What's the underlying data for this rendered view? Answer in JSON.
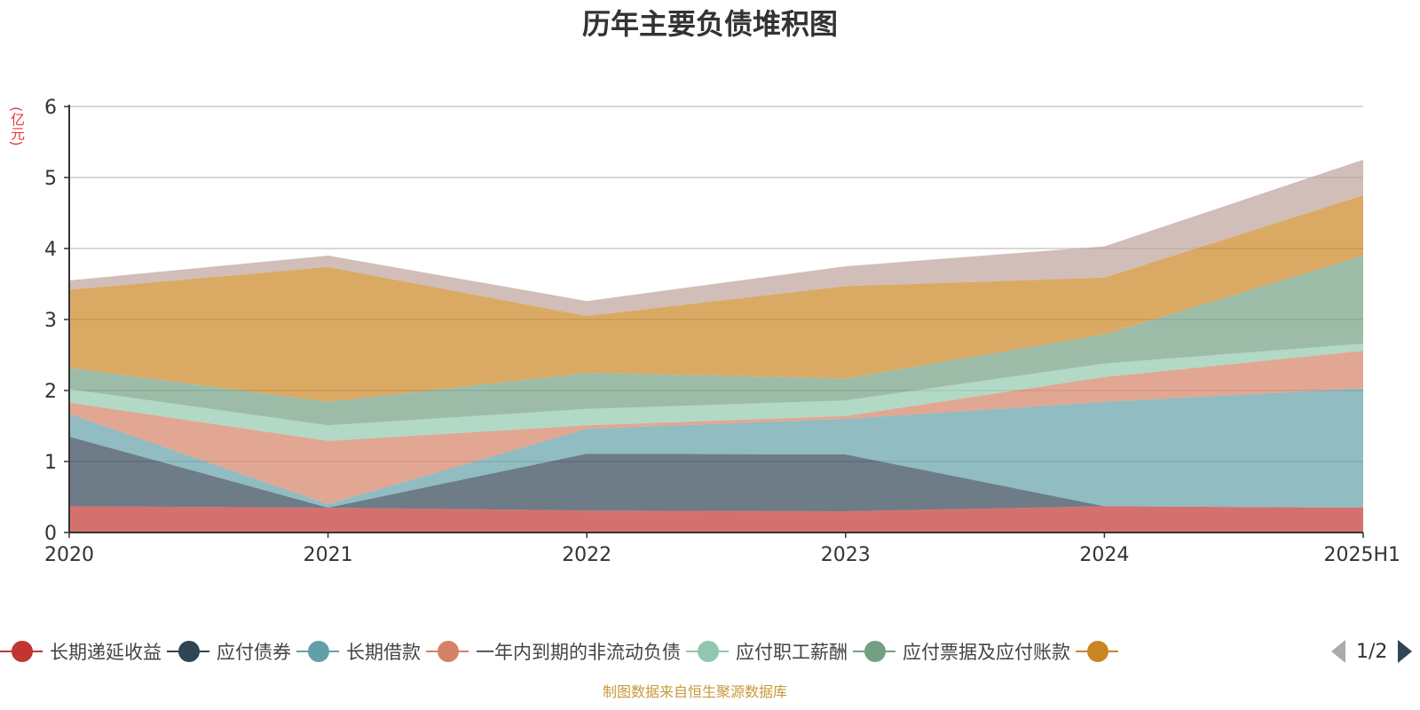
{
  "chart_data": {
    "type": "area",
    "stacked": true,
    "title": "历年主要负债堆积图",
    "ylabel": "(亿元)",
    "categories": [
      "2020",
      "2021",
      "2022",
      "2023",
      "2024",
      "2025H1"
    ],
    "ylim": [
      0,
      6
    ],
    "yticks": [
      "0",
      "1",
      "2",
      "3",
      "4",
      "5",
      "6"
    ],
    "grid": true,
    "series": [
      {
        "name": "长期递延收益",
        "color": "#c23531",
        "values": [
          0.37,
          0.35,
          0.31,
          0.3,
          0.37,
          0.35
        ]
      },
      {
        "name": "应付债券",
        "color": "#2f4554",
        "values": [
          0.98,
          0.0,
          0.8,
          0.8,
          0.0,
          0.0
        ]
      },
      {
        "name": "长期借款",
        "color": "#61a0a8",
        "values": [
          0.32,
          0.05,
          0.35,
          0.5,
          1.47,
          1.68
        ]
      },
      {
        "name": "一年内到期的非流动负债",
        "color": "#d48265",
        "values": [
          0.16,
          0.89,
          0.05,
          0.04,
          0.35,
          0.53
        ]
      },
      {
        "name": "应付职工薪酬",
        "color": "#91c7ae",
        "values": [
          0.19,
          0.22,
          0.23,
          0.22,
          0.19,
          0.1
        ]
      },
      {
        "name": "应付票据及应付账款",
        "color": "#749f83",
        "values": [
          0.3,
          0.33,
          0.51,
          0.31,
          0.41,
          1.24
        ]
      },
      {
        "name": "",
        "color": "#ca8622",
        "values": [
          1.1,
          1.9,
          0.8,
          1.3,
          0.8,
          0.85
        ]
      },
      {
        "name": "",
        "color": "#bda29a",
        "values": [
          0.13,
          0.16,
          0.21,
          0.28,
          0.44,
          0.5
        ]
      }
    ]
  },
  "legend": {
    "items": [
      {
        "label": "长期递延收益",
        "color": "#c23531"
      },
      {
        "label": "应付债券",
        "color": "#2f4554"
      },
      {
        "label": "长期借款",
        "color": "#61a0a8"
      },
      {
        "label": "一年内到期的非流动负债",
        "color": "#d48265"
      },
      {
        "label": "应付职工薪酬",
        "color": "#91c7ae"
      },
      {
        "label": "应付票据及应付账款",
        "color": "#749f83"
      },
      {
        "label": "",
        "color": "#ca8622"
      }
    ],
    "page": "1/2"
  },
  "source": "制图数据来自恒生聚源数据库"
}
